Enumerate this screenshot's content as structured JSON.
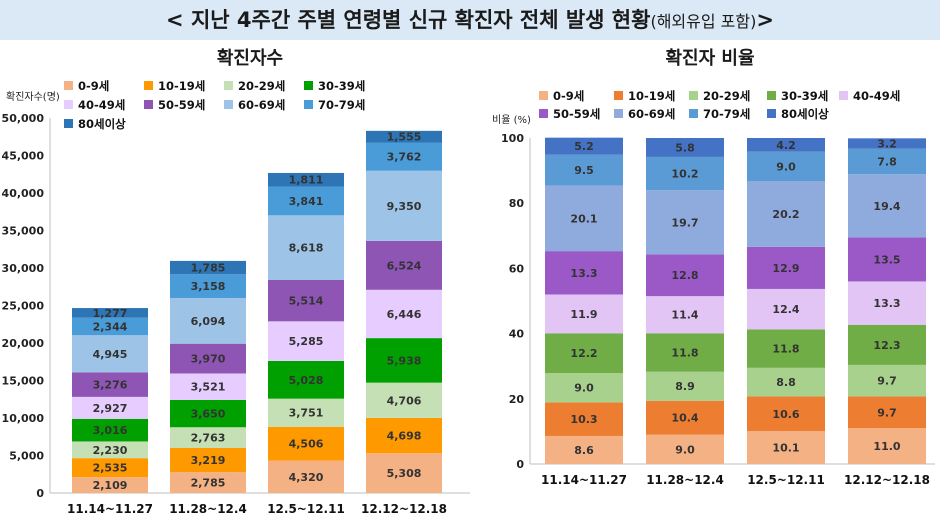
{
  "title": {
    "main": "< 지난 4주간 주별 연령별 신규 확진자 전체 발생 현황",
    "sub": "(해외유입 포함)",
    "suffix": ">"
  },
  "colors": {
    "header_bg": "#dbe9f6",
    "age_colors": [
      "#f4b183",
      "#ff9900",
      "#c5e0b4",
      "#00a000",
      "#e6ccff",
      "#8e55b4",
      "#9dc3e6",
      "#4a9cd8",
      "#2e75b6"
    ],
    "pct_colors": [
      "#f4b183",
      "#ed7d31",
      "#a9d18e",
      "#70ad47",
      "#e2c4f5",
      "#9b59c8",
      "#8faadc",
      "#5b9bd5",
      "#4472c4"
    ]
  },
  "chart_data": [
    {
      "type": "bar",
      "stacked": true,
      "title": "확진자수",
      "ylabel": "확진자수(명)",
      "categories": [
        "11.14~11.27",
        "11.28~12.4",
        "12.5~12.11",
        "12.12~12.18"
      ],
      "ylim": [
        0,
        50000
      ],
      "yticks": [
        "0",
        "5,000",
        "10,000",
        "15,000",
        "20,000",
        "25,000",
        "30,000",
        "35,000",
        "40,000",
        "45,000",
        "50,000"
      ],
      "series": [
        {
          "name": "0-9세",
          "values": [
            2109,
            2785,
            4320,
            5308
          ],
          "labels": [
            "2,109",
            "2,785",
            "4,320",
            "5,308"
          ]
        },
        {
          "name": "10-19세",
          "values": [
            2535,
            3219,
            4506,
            4698
          ],
          "labels": [
            "2,535",
            "3,219",
            "4,506",
            "4,698"
          ]
        },
        {
          "name": "20-29세",
          "values": [
            2230,
            2763,
            3751,
            4706
          ],
          "labels": [
            "2,230",
            "2,763",
            "3,751",
            "4,706"
          ]
        },
        {
          "name": "30-39세",
          "values": [
            3016,
            3650,
            5028,
            5938
          ],
          "labels": [
            "3,016",
            "3,650",
            "5,028",
            "5,938"
          ]
        },
        {
          "name": "40-49세",
          "values": [
            2927,
            3521,
            5285,
            6446
          ],
          "labels": [
            "2,927",
            "3,521",
            "5,285",
            "6,446"
          ]
        },
        {
          "name": "50-59세",
          "values": [
            3276,
            3970,
            5514,
            6524
          ],
          "labels": [
            "3,276",
            "3,970",
            "5,514",
            "6,524"
          ]
        },
        {
          "name": "60-69세",
          "values": [
            4945,
            6094,
            8618,
            9350
          ],
          "labels": [
            "4,945",
            "6,094",
            "8,618",
            "9,350"
          ]
        },
        {
          "name": "70-79세",
          "values": [
            2344,
            3158,
            3841,
            3762
          ],
          "labels": [
            "2,344",
            "3,158",
            "3,841",
            "3,762"
          ]
        },
        {
          "name": "80세이상",
          "values": [
            1277,
            1785,
            1811,
            1555
          ],
          "labels": [
            "1,277",
            "1,785",
            "1,811",
            "1,555"
          ]
        }
      ]
    },
    {
      "type": "bar",
      "stacked": true,
      "title": "확진자 비율",
      "ylabel": "비율 (%)",
      "categories": [
        "11.14~11.27",
        "11.28~12.4",
        "12.5~12.11",
        "12.12~12.18"
      ],
      "ylim": [
        0,
        100
      ],
      "yticks": [
        "0",
        "20",
        "40",
        "60",
        "80",
        "100"
      ],
      "series": [
        {
          "name": "0-9세",
          "values": [
            8.6,
            9.0,
            10.1,
            11.0
          ],
          "labels": [
            "8.6",
            "9.0",
            "10.1",
            "11.0"
          ]
        },
        {
          "name": "10-19세",
          "values": [
            10.3,
            10.4,
            10.6,
            9.7
          ],
          "labels": [
            "10.3",
            "10.4",
            "10.6",
            "9.7"
          ]
        },
        {
          "name": "20-29세",
          "values": [
            9.0,
            8.9,
            8.8,
            9.7
          ],
          "labels": [
            "9.0",
            "8.9",
            "8.8",
            "9.7"
          ]
        },
        {
          "name": "30-39세",
          "values": [
            12.2,
            11.8,
            11.8,
            12.3
          ],
          "labels": [
            "12.2",
            "11.8",
            "11.8",
            "12.3"
          ]
        },
        {
          "name": "40-49세",
          "values": [
            11.9,
            11.4,
            12.4,
            13.3
          ],
          "labels": [
            "11.9",
            "11.4",
            "12.4",
            "13.3"
          ]
        },
        {
          "name": "50-59세",
          "values": [
            13.3,
            12.8,
            12.9,
            13.5
          ],
          "labels": [
            "13.3",
            "12.8",
            "12.9",
            "13.5"
          ]
        },
        {
          "name": "60-69세",
          "values": [
            20.1,
            19.7,
            20.2,
            19.4
          ],
          "labels": [
            "20.1",
            "19.7",
            "20.2",
            "19.4"
          ]
        },
        {
          "name": "70-79세",
          "values": [
            9.5,
            10.2,
            9.0,
            7.8
          ],
          "labels": [
            "9.5",
            "10.2",
            "9.0",
            "7.8"
          ]
        },
        {
          "name": "80세이상",
          "values": [
            5.2,
            5.8,
            4.2,
            3.2
          ],
          "labels": [
            "5.2",
            "5.8",
            "4.2",
            "3.2"
          ]
        }
      ]
    }
  ]
}
